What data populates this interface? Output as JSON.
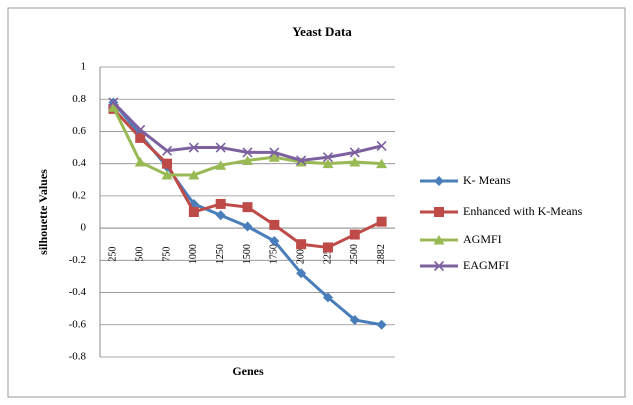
{
  "chart_data": {
    "type": "line",
    "title": "Yeast Data",
    "x_label": "Genes",
    "y_label": "silhouette Values",
    "categories": [
      "250",
      "500",
      "750",
      "1000",
      "1250",
      "1500",
      "1750",
      "2000",
      "2250",
      "2500",
      "2882"
    ],
    "series": [
      {
        "name": "K- Means",
        "color": "#4a7ebb",
        "marker": "diamond",
        "values": [
          0.78,
          0.58,
          0.38,
          0.15,
          0.08,
          0.01,
          -0.08,
          -0.28,
          -0.43,
          -0.57,
          -0.6
        ]
      },
      {
        "name": "Enhanced with K-Means",
        "color": "#be4b48",
        "marker": "square",
        "values": [
          0.74,
          0.56,
          0.4,
          0.1,
          0.15,
          0.13,
          0.02,
          -0.1,
          -0.12,
          -0.04,
          0.04
        ]
      },
      {
        "name": "AGMFI",
        "color": "#98b954",
        "marker": "triangle",
        "values": [
          0.75,
          0.41,
          0.33,
          0.33,
          0.39,
          0.42,
          0.44,
          0.41,
          0.4,
          0.41,
          0.4
        ]
      },
      {
        "name": "EAGMFI",
        "color": "#7d60a0",
        "marker": "x",
        "values": [
          0.78,
          0.61,
          0.48,
          0.5,
          0.5,
          0.47,
          0.47,
          0.42,
          0.44,
          0.47,
          0.51
        ]
      }
    ],
    "ylim": [
      -0.8,
      1
    ],
    "yticks": [
      -0.8,
      -0.6,
      -0.4,
      -0.2,
      0,
      0.2,
      0.4,
      0.6,
      0.8,
      1
    ],
    "grid": true,
    "legend": "right"
  }
}
